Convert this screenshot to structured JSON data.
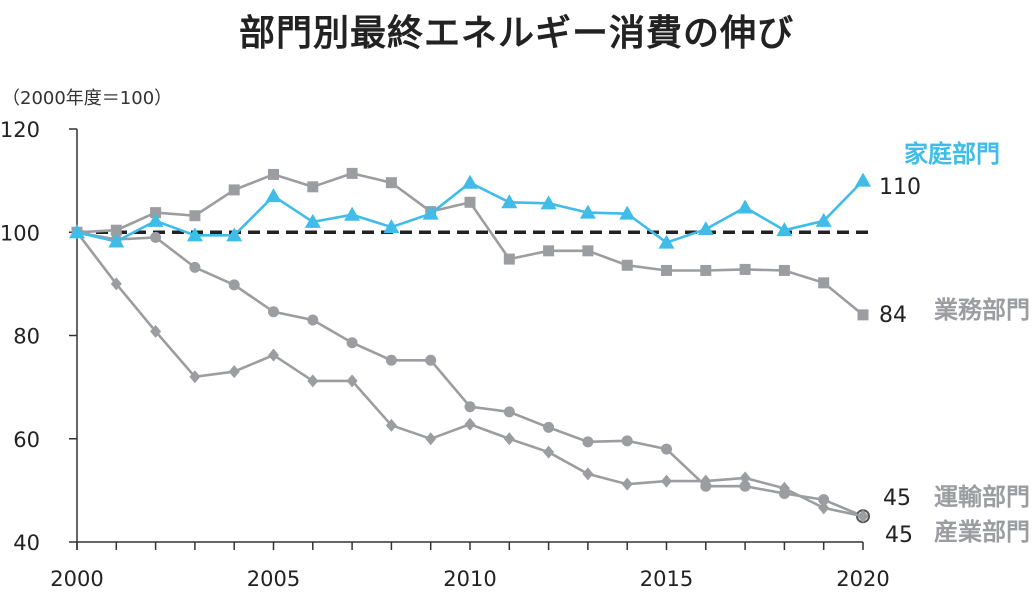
{
  "chart_data": {
    "type": "line",
    "title": "部門別最終エネルギー消費の伸び",
    "unit_label": "（2000年度＝100）",
    "x": [
      2000,
      2001,
      2002,
      2003,
      2004,
      2005,
      2006,
      2007,
      2008,
      2009,
      2010,
      2011,
      2012,
      2013,
      2014,
      2015,
      2016,
      2017,
      2018,
      2019,
      2020
    ],
    "xticks": [
      2000,
      2005,
      2010,
      2015,
      2020
    ],
    "yticks": [
      40,
      60,
      80,
      100,
      120
    ],
    "ylim": [
      40,
      120
    ],
    "reference_line": 100,
    "grid": false,
    "series": [
      {
        "name": "家庭部門",
        "end_label": "110",
        "color": "#3fbde8",
        "marker": "triangle",
        "values": [
          100,
          98.2,
          102.2,
          99.4,
          99.4,
          107,
          102,
          103.4,
          101,
          103.6,
          109.6,
          105.8,
          105.6,
          103.8,
          103.6,
          98,
          100.6,
          104.8,
          100.4,
          102.2,
          110
        ]
      },
      {
        "name": "業務部門",
        "end_label": "84",
        "color": "#9c9da0",
        "marker": "square",
        "values": [
          100,
          100.4,
          103.8,
          103.2,
          108.2,
          111.2,
          108.8,
          111.4,
          109.6,
          104,
          105.8,
          94.8,
          96.4,
          96.4,
          93.6,
          92.6,
          92.6,
          92.8,
          92.6,
          90.2,
          84
        ]
      },
      {
        "name": "運輸部門",
        "end_label": "45",
        "color": "#9c9da0",
        "marker": "circle",
        "values": [
          100,
          98.6,
          99,
          93.2,
          89.8,
          84.6,
          83,
          78.6,
          75.2,
          75.2,
          66.2,
          65.2,
          62.2,
          59.4,
          59.6,
          58,
          50.8,
          50.8,
          49.4,
          48.2,
          45
        ]
      },
      {
        "name": "産業部門",
        "end_label": "45",
        "color": "#9c9da0",
        "marker": "diamond",
        "values": [
          100,
          90,
          80.8,
          72,
          73,
          76.2,
          71.2,
          71.2,
          62.6,
          60,
          62.8,
          60,
          57.4,
          53.2,
          51.2,
          51.8,
          51.8,
          52.4,
          50.4,
          46.6,
          45
        ]
      }
    ]
  }
}
